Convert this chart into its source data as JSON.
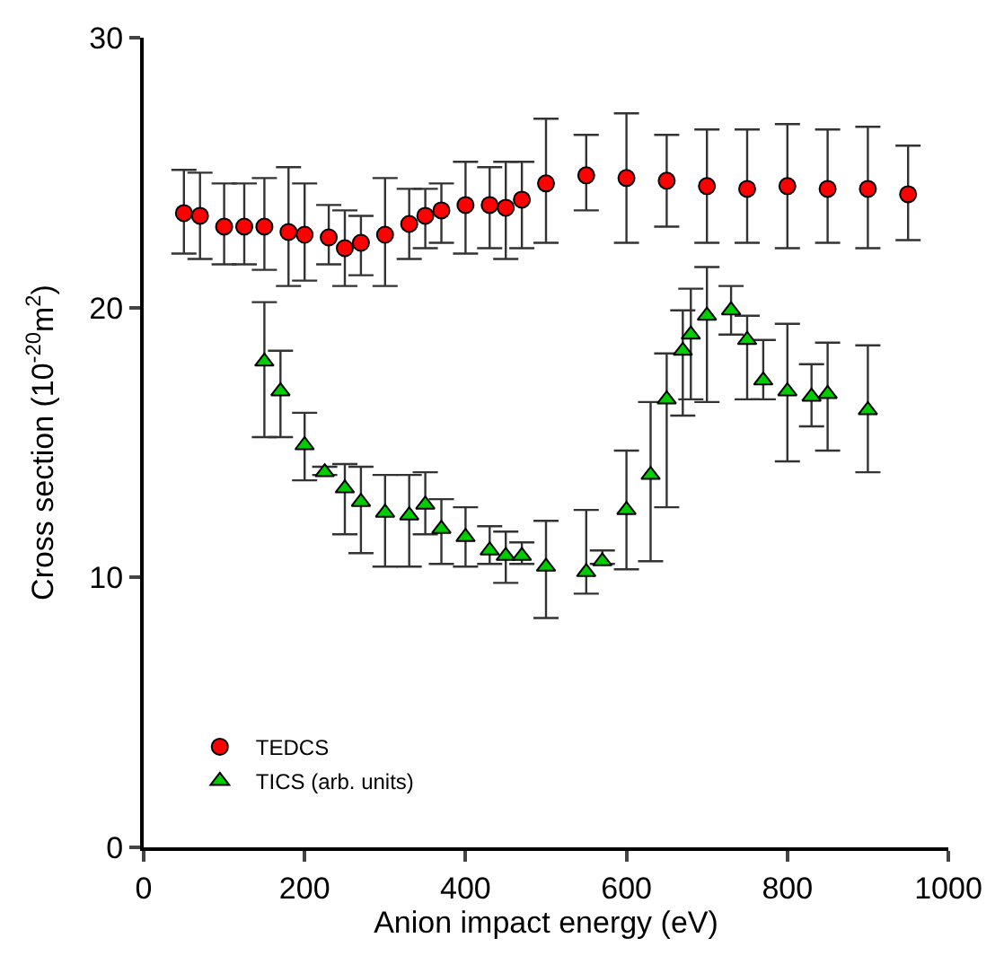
{
  "chart_data": {
    "type": "scatter",
    "xlabel": "Anion impact energy (eV)",
    "ylabel": "Cross section (10$^{-20}$m$^{2}$)",
    "xlim": [
      0,
      1000
    ],
    "xticks": [
      0,
      200,
      400,
      600,
      800,
      1000
    ],
    "ylim": [
      0,
      30
    ],
    "yticks": [
      0,
      10,
      20,
      30
    ],
    "legend": "bottom left",
    "series": [
      {
        "name": "TEDCS",
        "color": "#ff0000",
        "marker": "circle",
        "x": [
          50,
          70,
          100,
          125,
          150,
          180,
          200,
          230,
          250,
          270,
          300,
          330,
          350,
          370,
          400,
          430,
          450,
          470,
          500,
          550,
          600,
          650,
          700,
          750,
          800,
          850,
          900,
          950
        ],
        "values": [
          23.5,
          23.4,
          23.0,
          23.0,
          23.0,
          22.8,
          22.7,
          22.6,
          22.2,
          22.4,
          22.7,
          23.1,
          23.4,
          23.6,
          23.8,
          23.8,
          23.7,
          24.0,
          24.6,
          24.9,
          24.8,
          24.7,
          24.5,
          24.4,
          24.5,
          24.4,
          24.4,
          24.2
        ],
        "errors": [
          [
            22.0,
            25.1
          ],
          [
            21.8,
            25.0
          ],
          [
            21.6,
            24.6
          ],
          [
            21.6,
            24.6
          ],
          [
            21.4,
            24.8
          ],
          [
            20.8,
            25.2
          ],
          [
            21.0,
            24.6
          ],
          [
            21.6,
            23.8
          ],
          [
            20.8,
            23.6
          ],
          [
            21.2,
            23.4
          ],
          [
            20.8,
            24.8
          ],
          [
            21.8,
            24.4
          ],
          [
            22.2,
            24.4
          ],
          [
            22.4,
            24.6
          ],
          [
            22.0,
            25.4
          ],
          [
            22.2,
            25.2
          ],
          [
            21.8,
            25.4
          ],
          [
            22.2,
            25.4
          ],
          [
            22.4,
            27.0
          ],
          [
            23.6,
            26.4
          ],
          [
            22.4,
            27.2
          ],
          [
            23.0,
            26.4
          ],
          [
            22.4,
            26.6
          ],
          [
            22.4,
            26.6
          ],
          [
            22.2,
            26.8
          ],
          [
            22.4,
            26.6
          ],
          [
            22.2,
            26.7
          ],
          [
            22.5,
            26.0
          ]
        ]
      },
      {
        "name": "TICS (arb. units)",
        "color": "#00cc00",
        "marker": "triangle",
        "x": [
          150,
          170,
          200,
          225,
          250,
          270,
          300,
          330,
          350,
          370,
          400,
          430,
          450,
          470,
          500,
          550,
          570,
          600,
          630,
          650,
          670,
          680,
          700,
          730,
          750,
          770,
          800,
          830,
          850,
          900
        ],
        "values": [
          18.0,
          16.9,
          14.9,
          13.9,
          13.3,
          12.8,
          12.4,
          12.3,
          12.7,
          11.8,
          11.5,
          11.0,
          10.8,
          10.8,
          10.4,
          10.2,
          10.6,
          12.5,
          13.8,
          16.6,
          18.4,
          19.0,
          19.7,
          19.9,
          18.8,
          17.3,
          16.9,
          16.7,
          16.8,
          16.2
        ],
        "errors": [
          [
            15.2,
            20.2
          ],
          [
            15.2,
            18.4
          ],
          [
            13.6,
            16.1
          ],
          [
            13.8,
            14.1
          ],
          [
            11.6,
            14.2
          ],
          [
            10.9,
            14.1
          ],
          [
            10.4,
            13.8
          ],
          [
            10.4,
            13.8
          ],
          [
            11.6,
            13.9
          ],
          [
            10.5,
            12.9
          ],
          [
            10.4,
            12.6
          ],
          [
            10.5,
            11.9
          ],
          [
            9.8,
            11.7
          ],
          [
            10.5,
            11.3
          ],
          [
            8.5,
            12.1
          ],
          [
            9.4,
            12.5
          ],
          [
            10.5,
            11.0
          ],
          [
            10.3,
            14.7
          ],
          [
            10.6,
            16.5
          ],
          [
            12.6,
            18.3
          ],
          [
            16.0,
            19.9
          ],
          [
            16.6,
            20.7
          ],
          [
            16.5,
            21.5
          ],
          [
            19.0,
            20.8
          ],
          [
            16.6,
            19.7
          ],
          [
            16.6,
            18.8
          ],
          [
            14.3,
            19.4
          ],
          [
            15.6,
            17.9
          ],
          [
            14.7,
            18.7
          ],
          [
            13.9,
            18.6
          ]
        ]
      }
    ]
  }
}
